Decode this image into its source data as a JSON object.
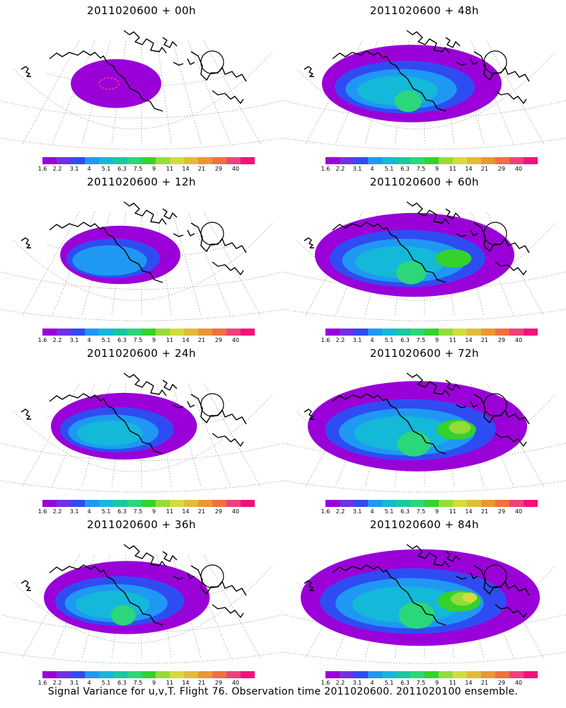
{
  "colorbar": {
    "colors": [
      "#9a00d8",
      "#7030e8",
      "#2f4cf2",
      "#1f98f4",
      "#14b8d8",
      "#18c8a0",
      "#2cd67a",
      "#34d22c",
      "#96dc38",
      "#d2dc3c",
      "#e0bc3a",
      "#e89832",
      "#f07040",
      "#f0407a",
      "#f4107a"
    ],
    "labels": [
      "1.6",
      "2.2",
      "3.1",
      "4",
      "5.1",
      "6.3",
      "7.5",
      "9",
      "11",
      "14",
      "21",
      "29",
      "40"
    ]
  },
  "panels": [
    {
      "title": "2011020600 + 00h",
      "intensity": 0.1
    },
    {
      "title": "2011020600 + 48h",
      "intensity": 0.55
    },
    {
      "title": "2011020600 + 12h",
      "intensity": 0.25
    },
    {
      "title": "2011020600 + 60h",
      "intensity": 0.65
    },
    {
      "title": "2011020600 + 24h",
      "intensity": 0.38
    },
    {
      "title": "2011020600 + 72h",
      "intensity": 0.75
    },
    {
      "title": "2011020600 + 36h",
      "intensity": 0.48
    },
    {
      "title": "2011020600 + 84h",
      "intensity": 0.85
    }
  ],
  "caption": "Signal Variance for u,v,T. Flight 76. Observation time 2011020600. 2011020100 ensemble."
}
